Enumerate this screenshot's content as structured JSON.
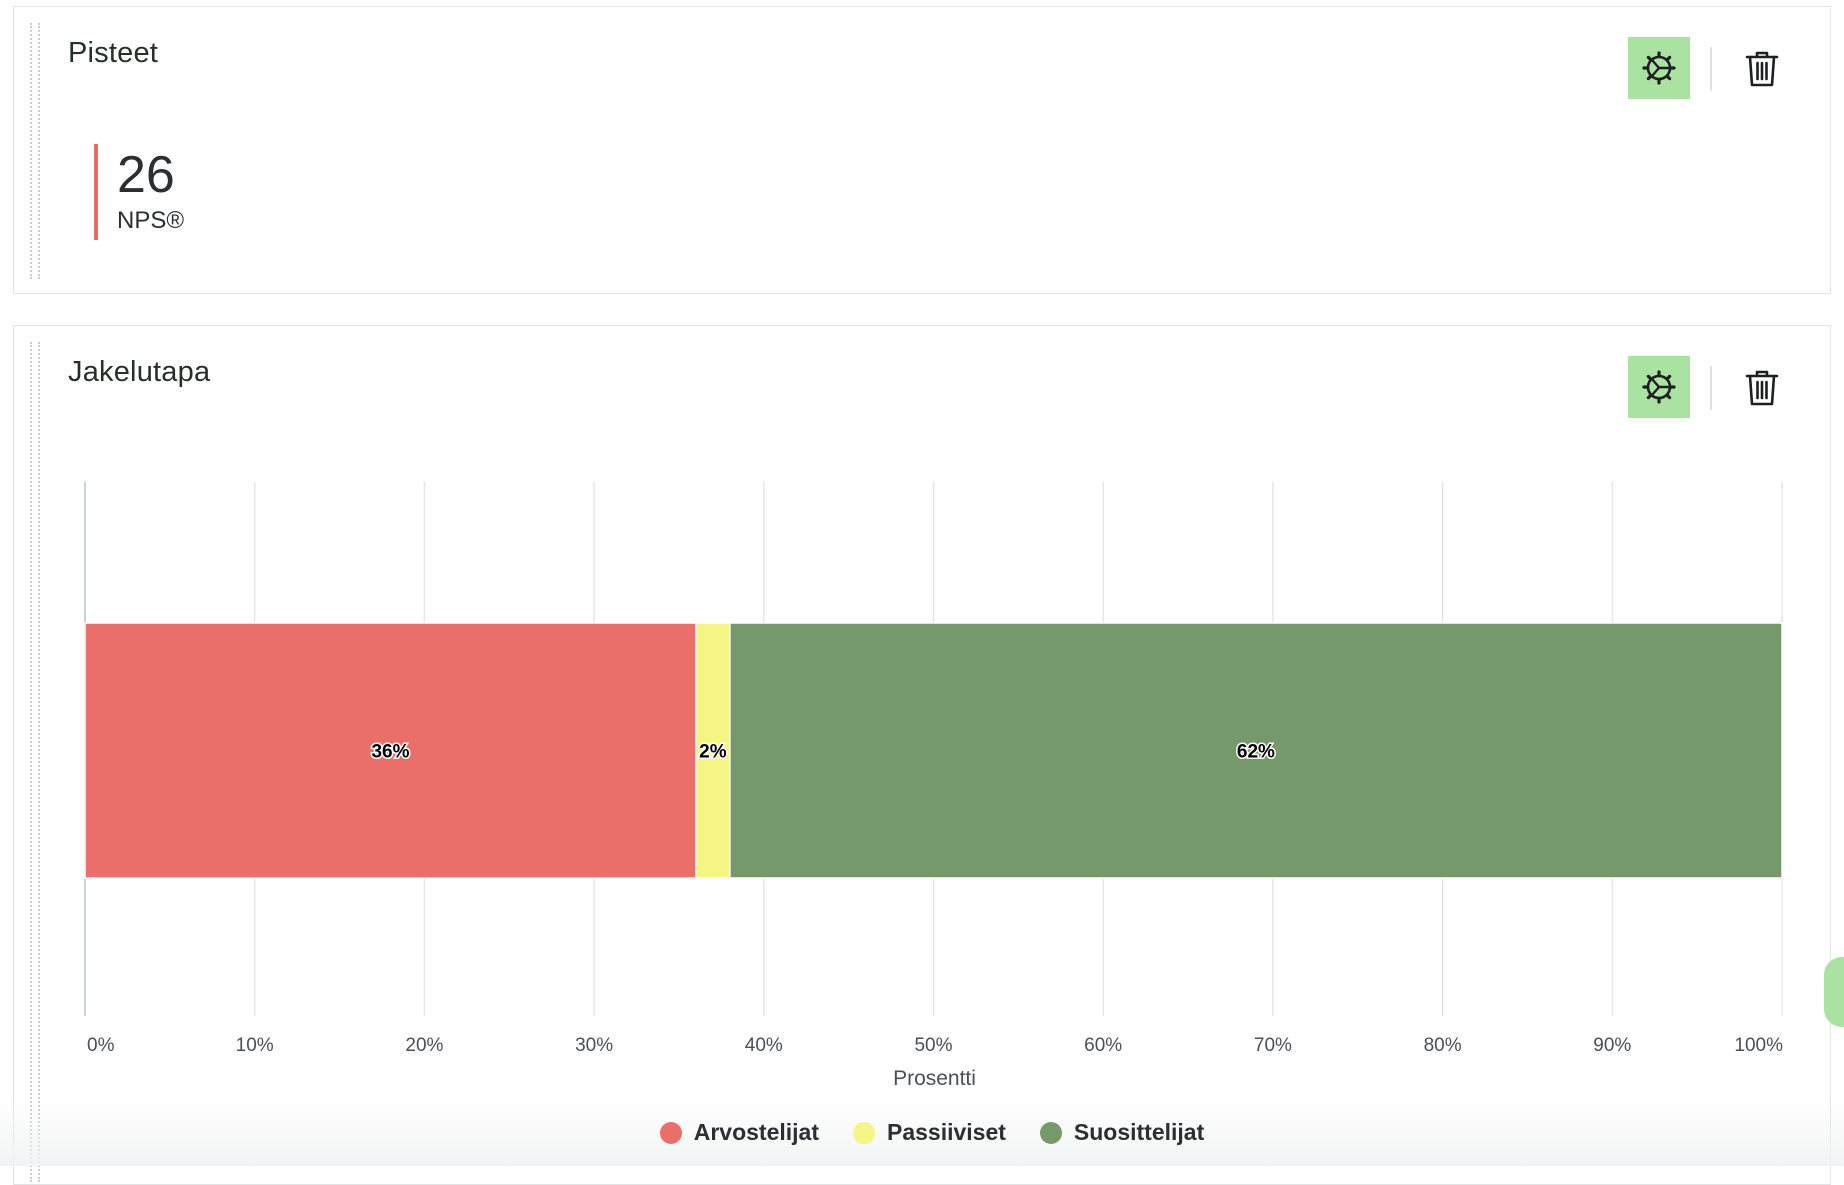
{
  "score_widget": {
    "title": "Pisteet",
    "score_value": "26",
    "score_label": "NPS®",
    "accent_color": "#e76e68"
  },
  "chart_widget": {
    "title": "Jakelutapa"
  },
  "colors": {
    "settings_button": "#a9e2a1",
    "detractors": "#eb6f69",
    "passives": "#f4f582",
    "promoters": "#75996b"
  },
  "icons": {
    "settings": "gear-icon",
    "delete": "trash-icon",
    "drag": "drag-handle"
  },
  "chart_data": {
    "type": "bar",
    "orientation": "horizontal",
    "stacked": true,
    "xlabel": "Prosentti",
    "ylabel": "",
    "xlim": [
      0,
      100
    ],
    "x_ticks": [
      "0%",
      "10%",
      "20%",
      "30%",
      "40%",
      "50%",
      "60%",
      "70%",
      "80%",
      "90%",
      "100%"
    ],
    "grid": true,
    "legend_position": "bottom-center",
    "series": [
      {
        "name": "Arvostelijat",
        "values": [
          36
        ],
        "label": "36%",
        "color": "#eb6f69"
      },
      {
        "name": "Passiiviset",
        "values": [
          2
        ],
        "label": "2%",
        "color": "#f4f582"
      },
      {
        "name": "Suosittelijat",
        "values": [
          62
        ],
        "label": "62%",
        "color": "#75996b"
      }
    ]
  }
}
